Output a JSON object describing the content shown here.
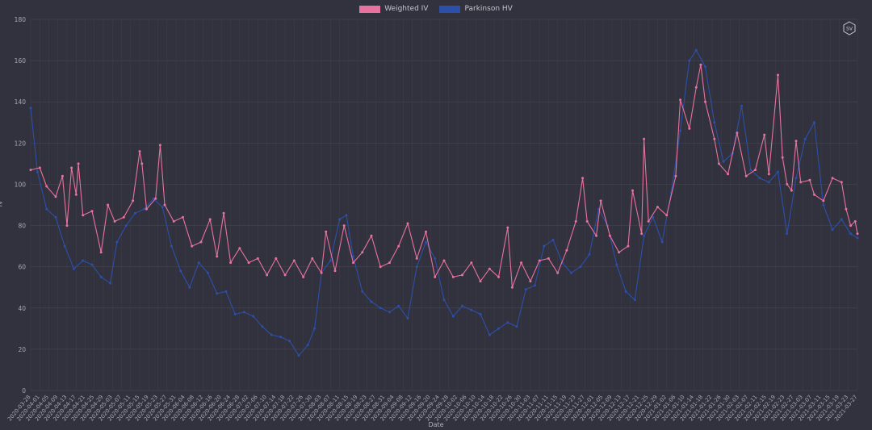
{
  "chart_data": {
    "type": "line",
    "title": "",
    "xlabel": "Date",
    "ylabel": "IV",
    "ylim": [
      0,
      180
    ],
    "yticks": [
      0,
      20,
      40,
      60,
      80,
      100,
      120,
      140,
      160,
      180
    ],
    "grid": true,
    "legend_position": "top-center",
    "x_start": "2020-03-28",
    "x_end": "2021-03-27",
    "xtick_labels": [
      "2020-03-28",
      "2020-04-01",
      "2020-04-05",
      "2020-04-09",
      "2020-04-13",
      "2020-04-17",
      "2020-04-21",
      "2020-04-25",
      "2020-04-29",
      "2020-05-03",
      "2020-05-07",
      "2020-05-11",
      "2020-05-15",
      "2020-05-19",
      "2020-05-23",
      "2020-05-27",
      "2020-05-31",
      "2020-06-04",
      "2020-06-08",
      "2020-06-12",
      "2020-06-16",
      "2020-06-20",
      "2020-06-24",
      "2020-06-28",
      "2020-07-02",
      "2020-07-06",
      "2020-07-10",
      "2020-07-14",
      "2020-07-18",
      "2020-07-22",
      "2020-07-26",
      "2020-07-30",
      "2020-08-03",
      "2020-08-07",
      "2020-08-11",
      "2020-08-15",
      "2020-08-19",
      "2020-08-23",
      "2020-08-27",
      "2020-08-31",
      "2020-09-04",
      "2020-09-08",
      "2020-09-12",
      "2020-09-16",
      "2020-09-20",
      "2020-09-24",
      "2020-09-28",
      "2020-10-02",
      "2020-10-06",
      "2020-10-10",
      "2020-10-14",
      "2020-10-18",
      "2020-10-22",
      "2020-10-26",
      "2020-10-30",
      "2020-11-03",
      "2020-11-07",
      "2020-11-11",
      "2020-11-15",
      "2020-11-19",
      "2020-11-23",
      "2020-11-27",
      "2020-12-01",
      "2020-12-05",
      "2020-12-09",
      "2020-12-13",
      "2020-12-17",
      "2020-12-21",
      "2020-12-25",
      "2020-12-29",
      "2021-01-02",
      "2021-01-06",
      "2021-01-10",
      "2021-01-14",
      "2021-01-18",
      "2021-01-22",
      "2021-01-26",
      "2021-01-30",
      "2021-02-03",
      "2021-02-07",
      "2021-02-11",
      "2021-02-15",
      "2021-02-19",
      "2021-02-23",
      "2021-02-27",
      "2021-03-03",
      "2021-03-07",
      "2021-03-11",
      "2021-03-15",
      "2021-03-19",
      "2021-03-23",
      "2021-03-27"
    ],
    "series": [
      {
        "name": "Weighted IV",
        "color": "#e8729f",
        "points": [
          [
            "2020-03-28",
            107
          ],
          [
            "2020-04-01",
            108
          ],
          [
            "2020-04-04",
            99
          ],
          [
            "2020-04-08",
            94
          ],
          [
            "2020-04-11",
            104
          ],
          [
            "2020-04-13",
            80
          ],
          [
            "2020-04-15",
            108
          ],
          [
            "2020-04-17",
            95
          ],
          [
            "2020-04-18",
            110
          ],
          [
            "2020-04-20",
            85
          ],
          [
            "2020-04-24",
            87
          ],
          [
            "2020-04-28",
            67
          ],
          [
            "2020-05-01",
            90
          ],
          [
            "2020-05-04",
            82
          ],
          [
            "2020-05-08",
            84
          ],
          [
            "2020-05-12",
            92
          ],
          [
            "2020-05-15",
            116
          ],
          [
            "2020-05-16",
            110
          ],
          [
            "2020-05-18",
            88
          ],
          [
            "2020-05-22",
            93
          ],
          [
            "2020-05-24",
            119
          ],
          [
            "2020-05-26",
            90
          ],
          [
            "2020-05-30",
            82
          ],
          [
            "2020-06-03",
            84
          ],
          [
            "2020-06-07",
            70
          ],
          [
            "2020-06-11",
            72
          ],
          [
            "2020-06-15",
            83
          ],
          [
            "2020-06-18",
            65
          ],
          [
            "2020-06-21",
            86
          ],
          [
            "2020-06-24",
            62
          ],
          [
            "2020-06-28",
            69
          ],
          [
            "2020-07-02",
            62
          ],
          [
            "2020-07-06",
            64
          ],
          [
            "2020-07-10",
            56
          ],
          [
            "2020-07-14",
            64
          ],
          [
            "2020-07-18",
            56
          ],
          [
            "2020-07-22",
            63
          ],
          [
            "2020-07-26",
            55
          ],
          [
            "2020-07-30",
            64
          ],
          [
            "2020-08-03",
            57
          ],
          [
            "2020-08-05",
            77
          ],
          [
            "2020-08-09",
            58
          ],
          [
            "2020-08-13",
            80
          ],
          [
            "2020-08-17",
            62
          ],
          [
            "2020-08-21",
            67
          ],
          [
            "2020-08-25",
            75
          ],
          [
            "2020-08-29",
            60
          ],
          [
            "2020-09-02",
            62
          ],
          [
            "2020-09-06",
            70
          ],
          [
            "2020-09-10",
            81
          ],
          [
            "2020-09-14",
            64
          ],
          [
            "2020-09-18",
            77
          ],
          [
            "2020-09-22",
            55
          ],
          [
            "2020-09-26",
            63
          ],
          [
            "2020-09-30",
            55
          ],
          [
            "2020-10-04",
            56
          ],
          [
            "2020-10-08",
            62
          ],
          [
            "2020-10-12",
            53
          ],
          [
            "2020-10-16",
            59
          ],
          [
            "2020-10-20",
            55
          ],
          [
            "2020-10-24",
            79
          ],
          [
            "2020-10-26",
            50
          ],
          [
            "2020-10-30",
            62
          ],
          [
            "2020-11-03",
            53
          ],
          [
            "2020-11-07",
            63
          ],
          [
            "2020-11-11",
            64
          ],
          [
            "2020-11-15",
            57
          ],
          [
            "2020-11-19",
            68
          ],
          [
            "2020-11-23",
            82
          ],
          [
            "2020-11-26",
            103
          ],
          [
            "2020-11-28",
            82
          ],
          [
            "2020-12-02",
            75
          ],
          [
            "2020-12-04",
            92
          ],
          [
            "2020-12-08",
            75
          ],
          [
            "2020-12-12",
            67
          ],
          [
            "2020-12-16",
            70
          ],
          [
            "2020-12-18",
            97
          ],
          [
            "2020-12-22",
            76
          ],
          [
            "2020-12-23",
            122
          ],
          [
            "2020-12-25",
            82
          ],
          [
            "2020-12-29",
            89
          ],
          [
            "2021-01-02",
            85
          ],
          [
            "2021-01-06",
            104
          ],
          [
            "2021-01-08",
            141
          ],
          [
            "2021-01-12",
            127
          ],
          [
            "2021-01-15",
            147
          ],
          [
            "2021-01-17",
            158
          ],
          [
            "2021-01-19",
            140
          ],
          [
            "2021-01-23",
            122
          ],
          [
            "2021-01-25",
            110
          ],
          [
            "2021-01-29",
            105
          ],
          [
            "2021-02-02",
            125
          ],
          [
            "2021-02-06",
            104
          ],
          [
            "2021-02-10",
            107
          ],
          [
            "2021-02-14",
            124
          ],
          [
            "2021-02-16",
            105
          ],
          [
            "2021-02-20",
            153
          ],
          [
            "2021-02-22",
            113
          ],
          [
            "2021-02-24",
            100
          ],
          [
            "2021-02-26",
            97
          ],
          [
            "2021-02-28",
            121
          ],
          [
            "2021-03-02",
            101
          ],
          [
            "2021-03-06",
            102
          ],
          [
            "2021-03-08",
            95
          ],
          [
            "2021-03-12",
            92
          ],
          [
            "2021-03-16",
            103
          ],
          [
            "2021-03-20",
            101
          ],
          [
            "2021-03-22",
            88
          ],
          [
            "2021-03-24",
            80
          ],
          [
            "2021-03-26",
            82
          ],
          [
            "2021-03-27",
            76
          ]
        ]
      },
      {
        "name": "Parkinson HV",
        "color": "#2c4faa",
        "points": [
          [
            "2020-03-28",
            137
          ],
          [
            "2020-03-31",
            106
          ],
          [
            "2020-04-04",
            88
          ],
          [
            "2020-04-08",
            84
          ],
          [
            "2020-04-12",
            70
          ],
          [
            "2020-04-16",
            59
          ],
          [
            "2020-04-20",
            63
          ],
          [
            "2020-04-24",
            61
          ],
          [
            "2020-04-28",
            55
          ],
          [
            "2020-05-02",
            52
          ],
          [
            "2020-05-05",
            72
          ],
          [
            "2020-05-09",
            80
          ],
          [
            "2020-05-13",
            86
          ],
          [
            "2020-05-17",
            88
          ],
          [
            "2020-05-21",
            93
          ],
          [
            "2020-05-25",
            89
          ],
          [
            "2020-05-29",
            70
          ],
          [
            "2020-06-02",
            58
          ],
          [
            "2020-06-06",
            50
          ],
          [
            "2020-06-10",
            62
          ],
          [
            "2020-06-14",
            57
          ],
          [
            "2020-06-18",
            47
          ],
          [
            "2020-06-22",
            48
          ],
          [
            "2020-06-26",
            37
          ],
          [
            "2020-06-30",
            38
          ],
          [
            "2020-07-04",
            36
          ],
          [
            "2020-07-08",
            31
          ],
          [
            "2020-07-12",
            27
          ],
          [
            "2020-07-16",
            26
          ],
          [
            "2020-07-20",
            24
          ],
          [
            "2020-07-24",
            17
          ],
          [
            "2020-07-28",
            22
          ],
          [
            "2020-07-31",
            30
          ],
          [
            "2020-08-03",
            57
          ],
          [
            "2020-08-07",
            63
          ],
          [
            "2020-08-11",
            83
          ],
          [
            "2020-08-14",
            85
          ],
          [
            "2020-08-17",
            65
          ],
          [
            "2020-08-21",
            48
          ],
          [
            "2020-08-25",
            43
          ],
          [
            "2020-08-29",
            40
          ],
          [
            "2020-09-02",
            38
          ],
          [
            "2020-09-06",
            41
          ],
          [
            "2020-09-10",
            35
          ],
          [
            "2020-09-14",
            60
          ],
          [
            "2020-09-18",
            72
          ],
          [
            "2020-09-22",
            64
          ],
          [
            "2020-09-26",
            44
          ],
          [
            "2020-09-30",
            36
          ],
          [
            "2020-10-04",
            41
          ],
          [
            "2020-10-08",
            39
          ],
          [
            "2020-10-12",
            37
          ],
          [
            "2020-10-16",
            27
          ],
          [
            "2020-10-20",
            30
          ],
          [
            "2020-10-24",
            33
          ],
          [
            "2020-10-28",
            31
          ],
          [
            "2020-11-01",
            49
          ],
          [
            "2020-11-05",
            51
          ],
          [
            "2020-11-09",
            70
          ],
          [
            "2020-11-13",
            73
          ],
          [
            "2020-11-17",
            62
          ],
          [
            "2020-11-21",
            57
          ],
          [
            "2020-11-25",
            60
          ],
          [
            "2020-11-29",
            66
          ],
          [
            "2020-12-03",
            88
          ],
          [
            "2020-12-07",
            80
          ],
          [
            "2020-12-11",
            61
          ],
          [
            "2020-12-15",
            48
          ],
          [
            "2020-12-19",
            44
          ],
          [
            "2020-12-23",
            75
          ],
          [
            "2020-12-27",
            84
          ],
          [
            "2020-12-31",
            72
          ],
          [
            "2021-01-04",
            96
          ],
          [
            "2021-01-08",
            126
          ],
          [
            "2021-01-12",
            160
          ],
          [
            "2021-01-15",
            165
          ],
          [
            "2021-01-19",
            157
          ],
          [
            "2021-01-23",
            130
          ],
          [
            "2021-01-27",
            111
          ],
          [
            "2021-01-31",
            115
          ],
          [
            "2021-02-04",
            138
          ],
          [
            "2021-02-08",
            107
          ],
          [
            "2021-02-12",
            103
          ],
          [
            "2021-02-16",
            101
          ],
          [
            "2021-02-20",
            106
          ],
          [
            "2021-02-24",
            76
          ],
          [
            "2021-02-28",
            103
          ],
          [
            "2021-03-04",
            122
          ],
          [
            "2021-03-08",
            130
          ],
          [
            "2021-03-12",
            90
          ],
          [
            "2021-03-16",
            78
          ],
          [
            "2021-03-20",
            83
          ],
          [
            "2021-03-24",
            76
          ],
          [
            "2021-03-27",
            74
          ]
        ]
      }
    ]
  }
}
